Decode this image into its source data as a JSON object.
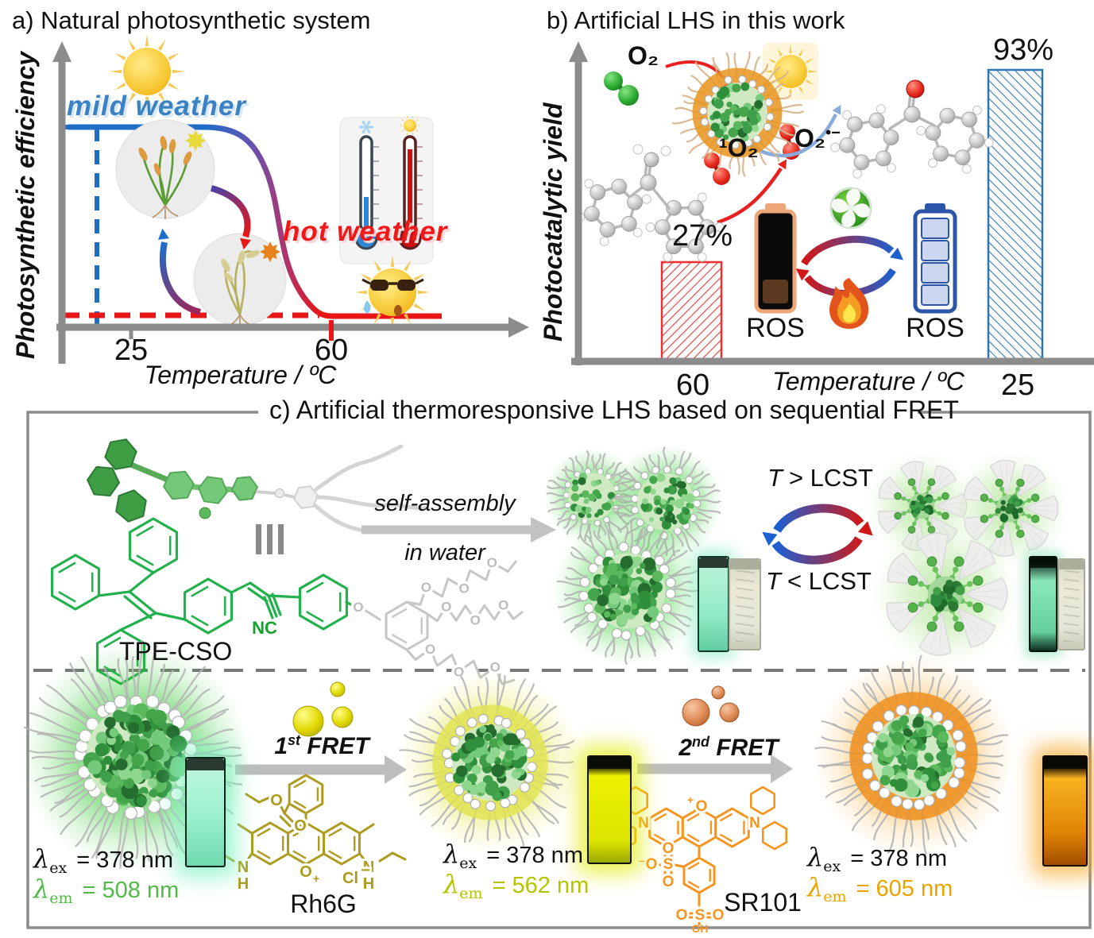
{
  "panel_a": {
    "title": "a) Natural photosynthetic system",
    "y_label": "Photosynthetic efficiency",
    "x_label": "Temperature / ºC",
    "mild": "mild weather",
    "hot": "hot weather",
    "tick_left": "25",
    "tick_right": "60"
  },
  "panel_b": {
    "title": "b) Artificial LHS in this work",
    "y_label": "Photocatalytic yield",
    "x_label": "Temperature / ºC",
    "tick_left": "60",
    "tick_right": "25",
    "bar_left_value": "27%",
    "bar_right_value": "93%",
    "oxygen": "O₂",
    "singlet_oxygen": "¹O₂",
    "superoxide_base": "O₂",
    "superoxide_sup": "•−",
    "ros_left": "ROS",
    "ros_right": "ROS"
  },
  "panel_c": {
    "title": "c) Artificial thermoresponsive LHS based on sequential FRET",
    "molecule_name": "TPE-CSO",
    "self_assembly": "self-assembly",
    "in_water": "in water",
    "lcst_above": {
      "t": "T",
      "rest": "> LCST"
    },
    "lcst_below": {
      "t": "T",
      "rest": "< LCST"
    },
    "fret1": {
      "n": "1",
      "ord": "st",
      "word": "FRET"
    },
    "fret2": {
      "n": "2",
      "ord": "nd",
      "word": "FRET"
    },
    "dye1_name": "Rh6G",
    "dye2_name": "SR101",
    "lambda": "λ",
    "sub_ex": "ex",
    "sub_em": "em",
    "states": [
      {
        "ex": "= 378 nm",
        "em": "= 508 nm",
        "em_color": "#53b948"
      },
      {
        "ex": "= 378 nm",
        "em": "= 562 nm",
        "em_color": "#b5c400"
      },
      {
        "ex": "= 378 nm",
        "em": "= 605 nm",
        "em_color": "#eaa400"
      }
    ],
    "structure": {
      "o": "O",
      "n": "N",
      "h": "H",
      "s": "S",
      "nc": "NC",
      "oh": "OH",
      "cl": "Cl",
      "minus": "−",
      "plus": "+",
      "o_minus": "⁻O"
    }
  },
  "chart_data": [
    {
      "type": "line",
      "panel": "a",
      "title": "a) Natural photosynthetic system",
      "xlabel": "Temperature / ºC",
      "ylabel": "Photosynthetic efficiency",
      "x_ticks": [
        25,
        60
      ],
      "series": [
        {
          "name": "photosynthetic efficiency vs temperature",
          "x": [
            5,
            15,
            25,
            30,
            35,
            40,
            45,
            50,
            55,
            60,
            75
          ],
          "y_norm": [
            1.0,
            1.0,
            1.0,
            0.97,
            0.86,
            0.55,
            0.22,
            0.07,
            0.02,
            0.0,
            0.0
          ]
        }
      ],
      "annotations": [
        "mild weather",
        "hot weather"
      ],
      "grid": false,
      "legend": "none"
    },
    {
      "type": "bar",
      "panel": "b",
      "title": "b) Artificial LHS in this work",
      "xlabel": "Temperature / ºC",
      "ylabel": "Photocatalytic yield",
      "categories": [
        "60",
        "25"
      ],
      "values": [
        27,
        93
      ],
      "unit": "%",
      "bar_colors": [
        "#f03030",
        "#2e75b6"
      ],
      "bar_style": "diagonal-hatch",
      "annotations": [
        "ROS",
        "ROS"
      ],
      "grid": false
    }
  ]
}
